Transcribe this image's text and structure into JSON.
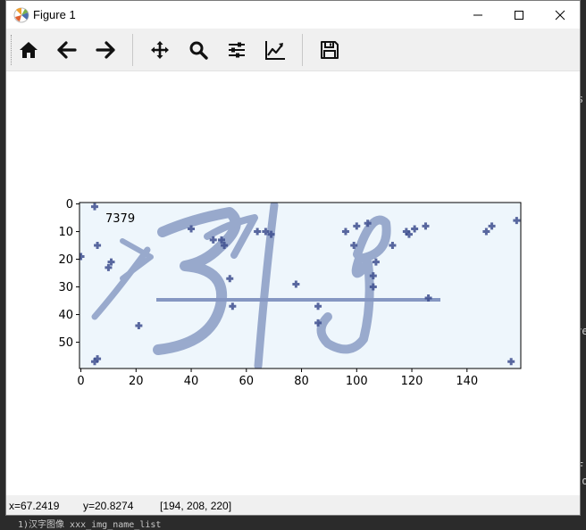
{
  "window": {
    "title": "Figure 1",
    "controls": [
      "minimize",
      "maximize",
      "close"
    ]
  },
  "toolbar": {
    "buttons": [
      {
        "name": "home-button",
        "icon": "home-icon",
        "tooltip": "Home"
      },
      {
        "name": "back-button",
        "icon": "arrow-left-icon",
        "tooltip": "Back"
      },
      {
        "name": "forward-button",
        "icon": "arrow-right-icon",
        "tooltip": "Forward"
      },
      {
        "name": "pan-button",
        "icon": "move-icon",
        "tooltip": "Pan"
      },
      {
        "name": "zoom-button",
        "icon": "magnifier-icon",
        "tooltip": "Zoom"
      },
      {
        "name": "subplots-button",
        "icon": "sliders-icon",
        "tooltip": "Subplots"
      },
      {
        "name": "edit-axis-button",
        "icon": "line-chart-icon",
        "tooltip": "Customize"
      },
      {
        "name": "save-button",
        "icon": "floppy-disk-icon",
        "tooltip": "Save"
      }
    ]
  },
  "figure": {
    "image_label": "7379",
    "image_tint": "#eef6fc",
    "ink_color": "#8a9cc4",
    "noise_color": "#3e4f8f"
  },
  "chart_data": {
    "type": "heatmap",
    "title": "",
    "xlabel": "",
    "ylabel": "",
    "image_width": 160,
    "image_height": 60,
    "xlim": [
      0,
      159
    ],
    "ylim": [
      59,
      0
    ],
    "xticks": [
      "0",
      "20",
      "40",
      "60",
      "80",
      "100",
      "120",
      "140"
    ],
    "yticks": [
      "0",
      "10",
      "20",
      "30",
      "40",
      "50"
    ],
    "annotations": [
      "7379"
    ]
  },
  "status": {
    "x": "x=67.2419",
    "y": "y=20.8274",
    "rgb": "[194, 208, 220]"
  },
  "background_text": {
    "right_1": "s",
    "right_2": "re",
    "right_3": "F",
    "right_4": "lo",
    "bottom": "1)汉字图像 xxx_img_name_list"
  }
}
